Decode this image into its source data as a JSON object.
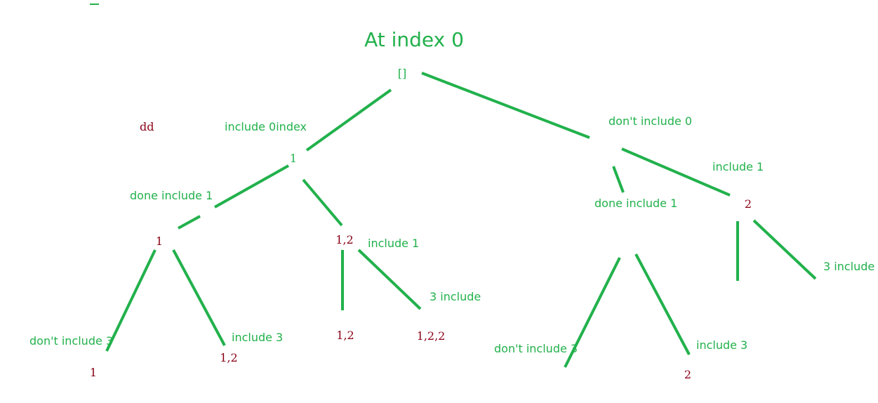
{
  "colors": {
    "edge": "#22b14c",
    "label": "#22b14c",
    "node": "#880015"
  },
  "title": "At index 0",
  "stray_text": "dd",
  "nodes": {
    "root": "[]",
    "l1": "1",
    "l1_l": "1",
    "l1_r": "1,2",
    "leaf_1": "1",
    "leaf_1_2": "1,2",
    "leaf_1_2b": "1,2",
    "leaf_1_2_2": "1,2,2",
    "r2": "2",
    "leaf_2": "2"
  },
  "labels": {
    "include_0index": "include 0index",
    "dont_include_0": "don't include 0",
    "done_include_1_left": "done include 1",
    "include_1_mid": "include 1",
    "done_include_1_right": "done include 1",
    "include_1_right": "include 1",
    "three_include_mid": "3 include",
    "three_include_right": "3 include",
    "dont_include_3_left": "don't include 3",
    "include_3_left": "include 3",
    "dont_include_3_right": "don't include 3",
    "include_3_right": "include 3"
  }
}
